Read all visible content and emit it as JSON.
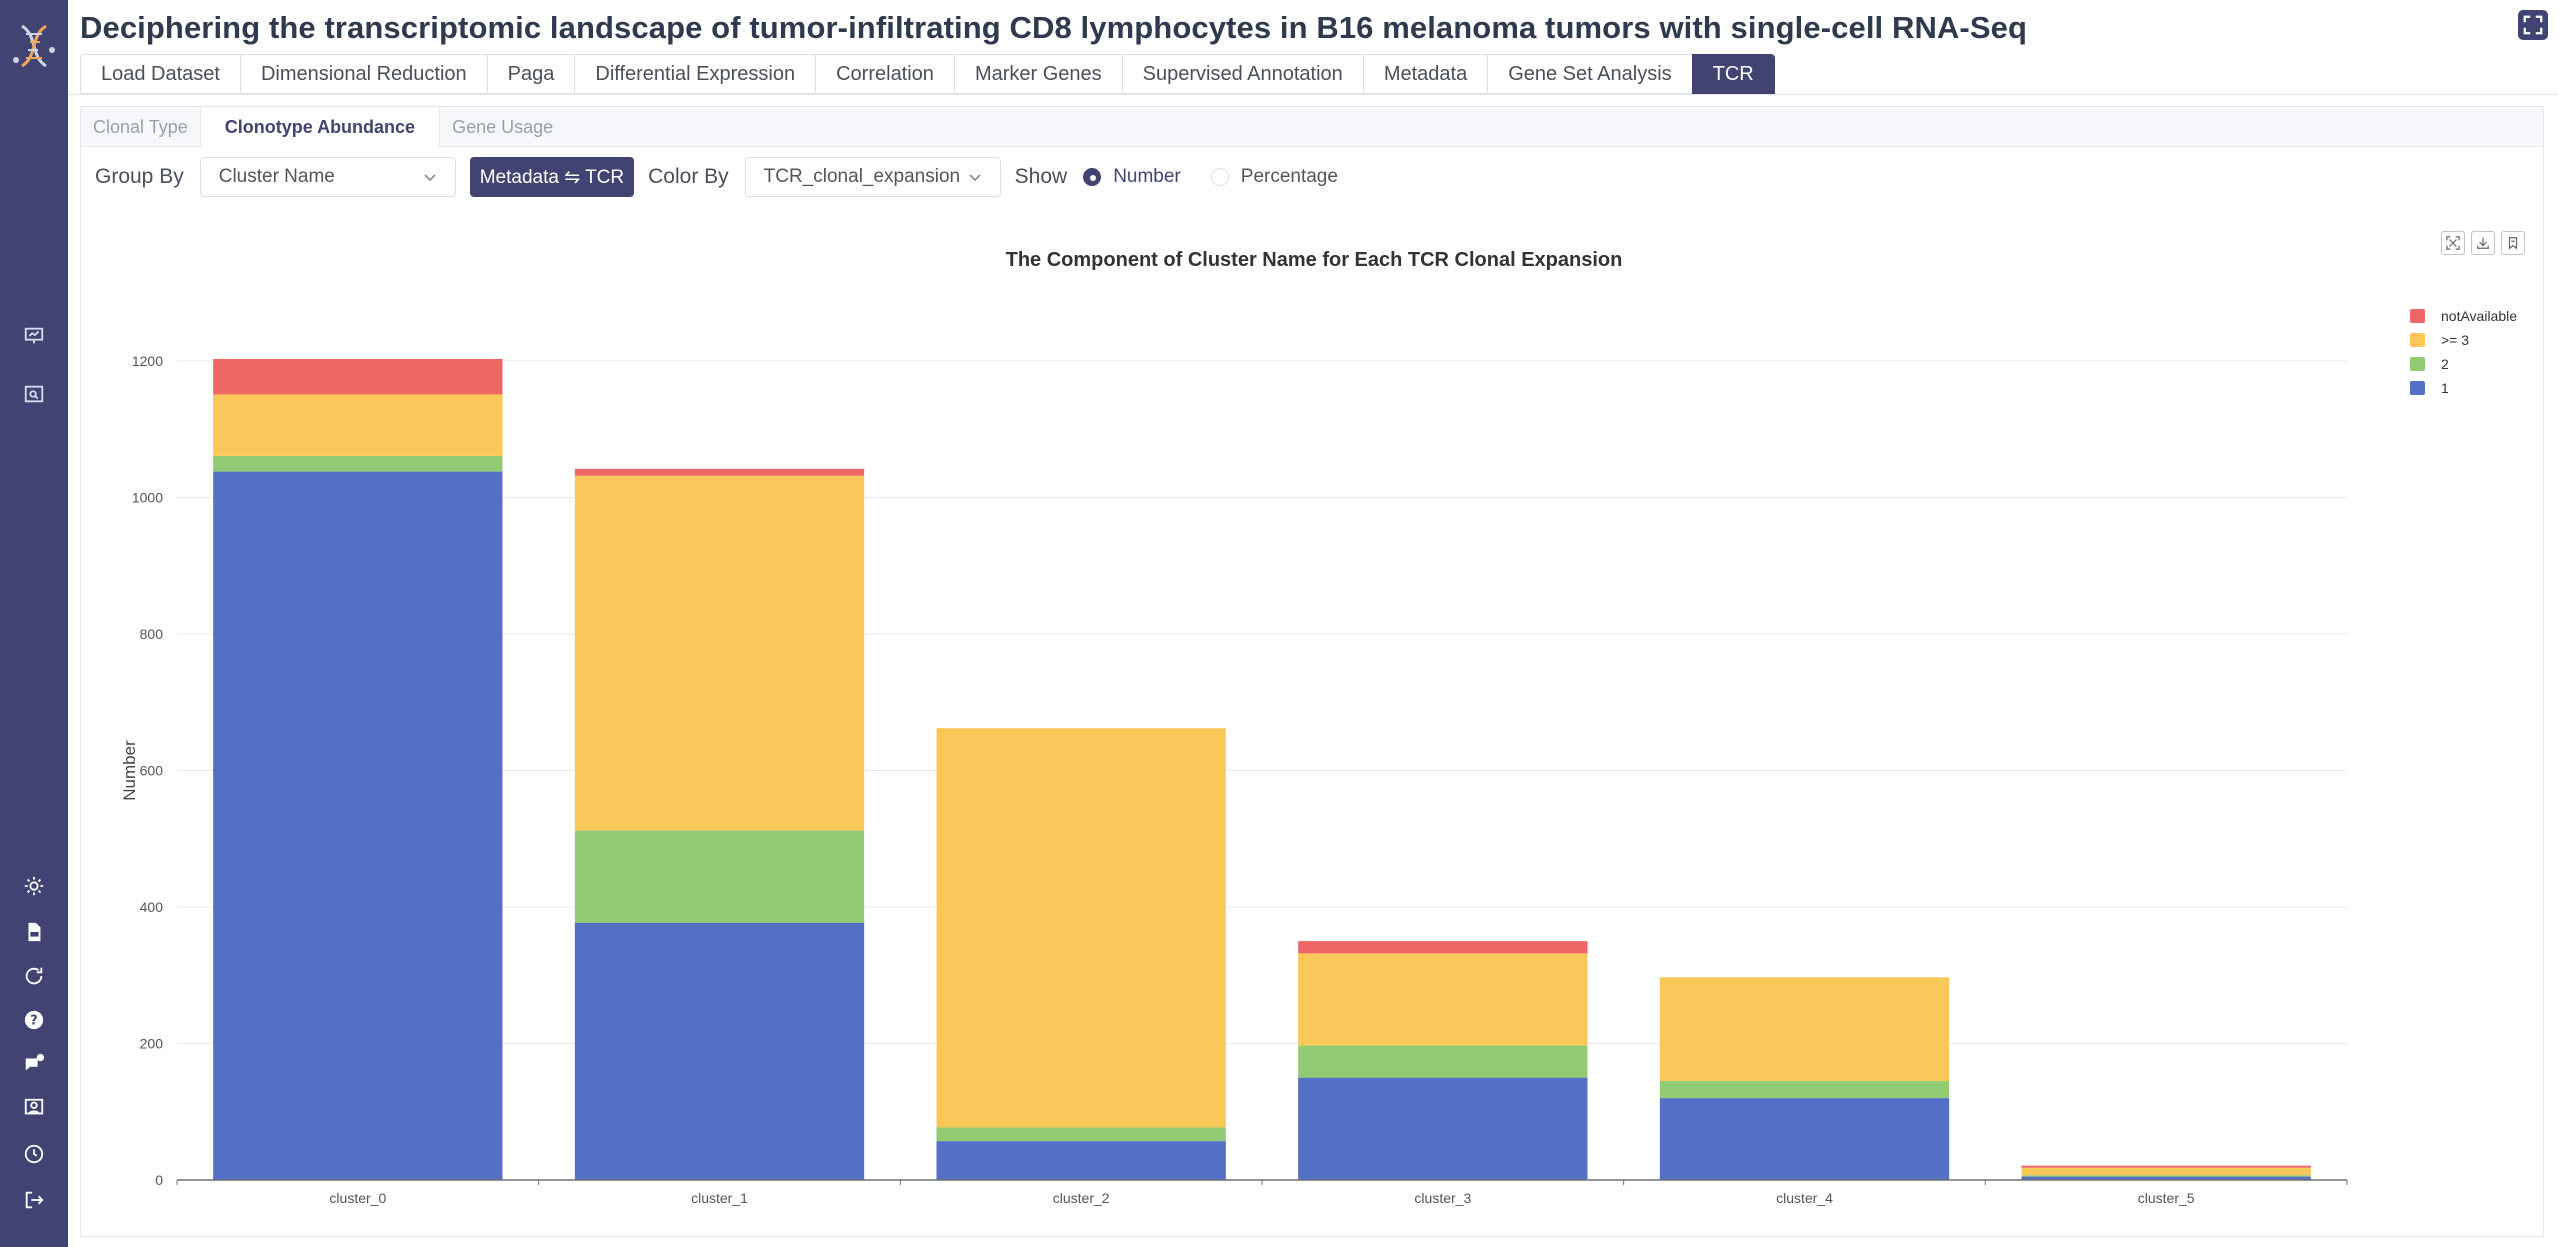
{
  "header": {
    "title": "Deciphering the transcriptomic landscape of tumor-infiltrating CD8 lymphocytes in B16 melanoma tumors with single-cell RNA-Seq"
  },
  "main_tabs": [
    {
      "label": "Load Dataset",
      "active": false
    },
    {
      "label": "Dimensional Reduction",
      "active": false
    },
    {
      "label": "Paga",
      "active": false
    },
    {
      "label": "Differential Expression",
      "active": false
    },
    {
      "label": "Correlation",
      "active": false
    },
    {
      "label": "Marker Genes",
      "active": false
    },
    {
      "label": "Supervised Annotation",
      "active": false
    },
    {
      "label": "Metadata",
      "active": false
    },
    {
      "label": "Gene Set Analysis",
      "active": false
    },
    {
      "label": "TCR",
      "active": true
    }
  ],
  "sub_tabs": [
    {
      "label": "Clonal Type",
      "active": false
    },
    {
      "label": "Clonotype Abundance",
      "active": true
    },
    {
      "label": "Gene Usage",
      "active": false
    }
  ],
  "controls": {
    "group_by_label": "Group By",
    "group_by_value": "Cluster Name",
    "switch_label": "Metadata ⇋ TCR",
    "color_by_label": "Color By",
    "color_by_value": "TCR_clonal_expansion",
    "show_label": "Show",
    "show_options": [
      {
        "label": "Number",
        "checked": true
      },
      {
        "label": "Percentage",
        "checked": false
      }
    ]
  },
  "colors": {
    "accent": "#414472",
    "series_1": "#5470c6",
    "series_2": "#91cc75",
    "series_3": "#fac858",
    "series_notAvailable": "#ee6666"
  },
  "chart_data": {
    "type": "bar",
    "stacked": true,
    "title": "The Component of Cluster Name for Each TCR Clonal Expansion",
    "xlabel": "",
    "ylabel": "Number",
    "ylim": [
      0,
      1200
    ],
    "yticks": [
      0,
      200,
      400,
      600,
      800,
      1000,
      1200
    ],
    "grid": true,
    "legend_position": "top-right",
    "categories": [
      "cluster_0",
      "cluster_1",
      "cluster_2",
      "cluster_3",
      "cluster_4",
      "cluster_5"
    ],
    "series": [
      {
        "name": "1",
        "color": "#5470c6",
        "values": [
          1038,
          377,
          57,
          150,
          120,
          5
        ]
      },
      {
        "name": "2",
        "color": "#91cc75",
        "values": [
          23,
          135,
          20,
          47,
          25,
          2
        ]
      },
      {
        "name": ">= 3",
        "color": "#fac858",
        "values": [
          90,
          520,
          585,
          135,
          152,
          11
        ]
      },
      {
        "name": "notAvailable",
        "color": "#ee6666",
        "values": [
          52,
          10,
          0,
          18,
          0,
          3
        ]
      }
    ],
    "legend_order": [
      "notAvailable",
      ">= 3",
      "2",
      "1"
    ]
  }
}
